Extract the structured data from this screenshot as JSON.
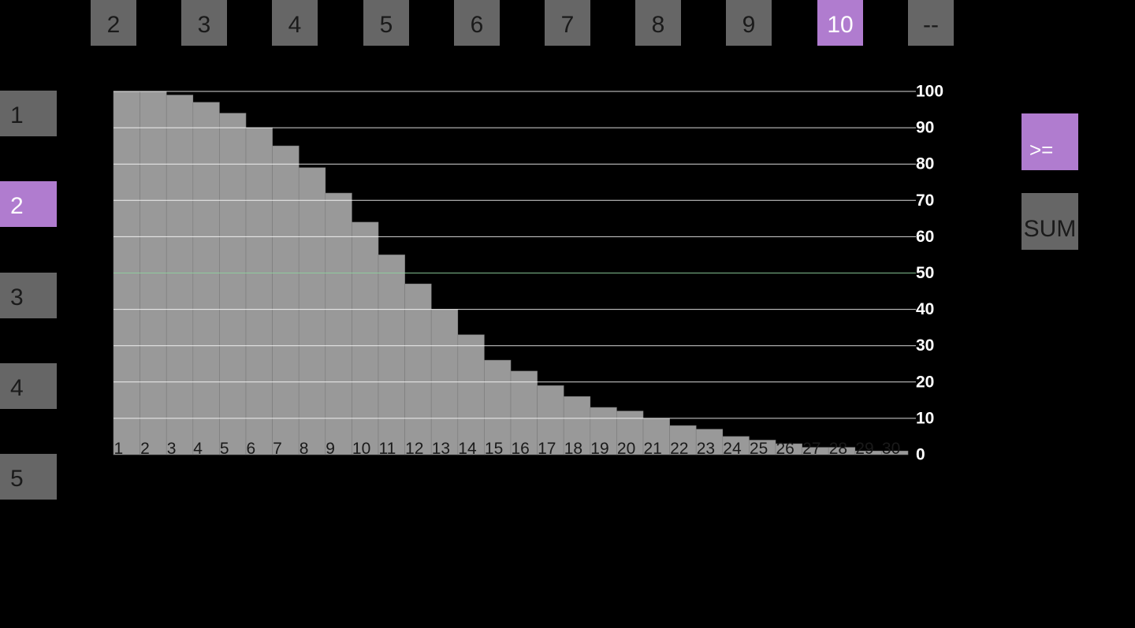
{
  "top_bar": {
    "items": [
      "2",
      "3",
      "4",
      "5",
      "6",
      "7",
      "8",
      "9",
      "10",
      "--"
    ],
    "selected": "10"
  },
  "side_bar": {
    "items": [
      "1",
      "2",
      "3",
      "4",
      "5"
    ],
    "selected": "2"
  },
  "modes": {
    "ge_label": ">=",
    "sum_label": "SUM",
    "selected": ">="
  },
  "colors": {
    "accent": "#b07ccf",
    "button": "#666666",
    "bar": "#999999",
    "gridline": "#ffffff",
    "highlight_gridline": "#8fd19e"
  },
  "chart_data": {
    "type": "bar",
    "categories": [
      "1",
      "2",
      "3",
      "4",
      "5",
      "6",
      "7",
      "8",
      "9",
      "10",
      "11",
      "12",
      "13",
      "14",
      "15",
      "16",
      "17",
      "18",
      "19",
      "20",
      "21",
      "22",
      "23",
      "24",
      "25",
      "26",
      "27",
      "28",
      "29",
      "30"
    ],
    "values": [
      100,
      100,
      99,
      97,
      94,
      90,
      85,
      79,
      72,
      64,
      55,
      47,
      40,
      33,
      26,
      23,
      19,
      16,
      13,
      12,
      10,
      8,
      7,
      5,
      4,
      3,
      2,
      2,
      1,
      1
    ],
    "ylim": [
      0,
      100
    ],
    "yticks": [
      "0",
      "10",
      "20",
      "30",
      "40",
      "50",
      "60",
      "70",
      "80",
      "90",
      "100"
    ],
    "highlight_line": 50,
    "grid": true
  }
}
